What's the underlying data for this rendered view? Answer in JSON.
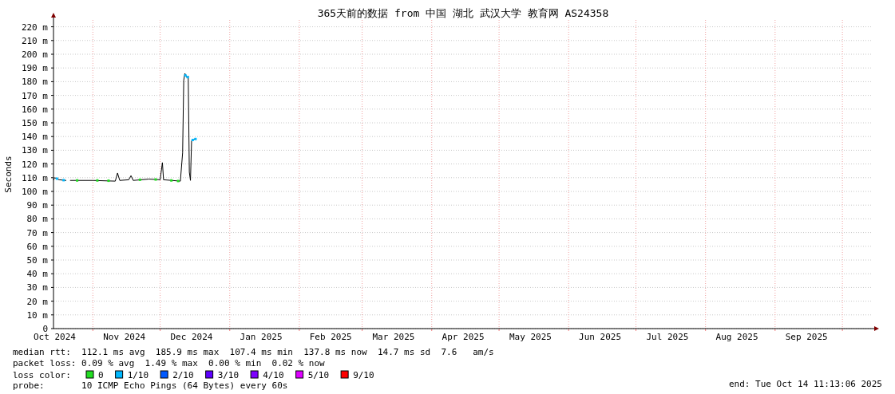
{
  "chart_data": {
    "type": "line",
    "title": "365天前的数据 from 中国 湖北 武汉大学 教育网 AS24358",
    "ylabel": "Seconds",
    "legend_title": "loss color:",
    "legend": "bottom",
    "grid": true,
    "line_style": "solid",
    "marker": "none",
    "xlim": [
      "2024-10-14T11:13",
      "2025-10-14T11:13"
    ],
    "xticks": [
      {
        "value": "2024-10-15",
        "label": "Oct 2024"
      },
      {
        "value": "2024-11-01",
        "label": null
      },
      {
        "value": "2024-11-15",
        "label": "Nov 2024"
      },
      {
        "value": "2024-12-01",
        "label": null
      },
      {
        "value": "2024-12-15",
        "label": "Dec 2024"
      },
      {
        "value": "2025-01-01",
        "label": null
      },
      {
        "value": "2025-01-15",
        "label": "Jan 2025"
      },
      {
        "value": "2025-02-01",
        "label": null
      },
      {
        "value": "2025-02-15",
        "label": "Feb 2025"
      },
      {
        "value": "2025-03-01",
        "label": null
      },
      {
        "value": "2025-03-15",
        "label": "Mar 2025"
      },
      {
        "value": "2025-04-01",
        "label": null
      },
      {
        "value": "2025-04-15",
        "label": "Apr 2025"
      },
      {
        "value": "2025-05-01",
        "label": null
      },
      {
        "value": "2025-05-15",
        "label": "May 2025"
      },
      {
        "value": "2025-06-01",
        "label": null
      },
      {
        "value": "2025-06-15",
        "label": "Jun 2025"
      },
      {
        "value": "2025-07-01",
        "label": null
      },
      {
        "value": "2025-07-15",
        "label": "Jul 2025"
      },
      {
        "value": "2025-08-01",
        "label": null
      },
      {
        "value": "2025-08-15",
        "label": "Aug 2025"
      },
      {
        "value": "2025-09-01",
        "label": null
      },
      {
        "value": "2025-09-15",
        "label": "Sep 2025"
      },
      {
        "value": "2025-10-01",
        "label": null
      }
    ],
    "ylim": [
      0,
      225
    ],
    "yticks": [
      0,
      {
        "value": 10,
        "label": "10 m"
      },
      {
        "value": 20,
        "label": "20 m"
      },
      {
        "value": 30,
        "label": "30 m"
      },
      {
        "value": 40,
        "label": "40 m"
      },
      {
        "value": 50,
        "label": "50 m"
      },
      {
        "value": 60,
        "label": "60 m"
      },
      {
        "value": 70,
        "label": "70 m"
      },
      {
        "value": 80,
        "label": "80 m"
      },
      {
        "value": 90,
        "label": "90 m"
      },
      {
        "value": 100,
        "label": "100 m"
      },
      {
        "value": 110,
        "label": "110 m"
      },
      {
        "value": 120,
        "label": "120 m"
      },
      {
        "value": 130,
        "label": "130 m"
      },
      {
        "value": 140,
        "label": "140 m"
      },
      {
        "value": 150,
        "label": "150 m"
      },
      {
        "value": 160,
        "label": "160 m"
      },
      {
        "value": 170,
        "label": "170 m"
      },
      {
        "value": 180,
        "label": "180 m"
      },
      {
        "value": 190,
        "label": "190 m"
      },
      {
        "value": 200,
        "label": "200 m"
      },
      {
        "value": 210,
        "label": "210 m"
      },
      {
        "value": 220,
        "label": "220 m"
      }
    ],
    "series": [
      {
        "name": "0",
        "type": "scatter",
        "marker": "square",
        "color": "#22dd22",
        "x": [
          "2024-10-25",
          "2024-11-03",
          "2024-11-08",
          "2024-11-22",
          "2024-11-29",
          "2024-12-06",
          "2024-12-09"
        ],
        "values": [
          108,
          108,
          107.8,
          108.5,
          108.7,
          108,
          107.6
        ]
      },
      {
        "name": "1/10",
        "type": "scatter",
        "marker": "square",
        "color": "#00b8ff",
        "x": [
          "2024-10-16",
          "2024-10-19",
          "2024-12-12T06:00",
          "2024-12-13T06:00",
          "2024-12-15T12:00",
          "2024-12-16T18:00"
        ],
        "values": [
          109.3,
          108.2,
          184.5,
          183.3,
          137.5,
          138.2
        ]
      },
      {
        "name": "2/10",
        "color": "#0059ff"
      },
      {
        "name": "3/10",
        "color": "#5e00ff"
      },
      {
        "name": "4/10",
        "color": "#7e00ff"
      },
      {
        "name": "5/10",
        "color": "#dd00ff"
      },
      {
        "name": "9/10",
        "color": "#ff0000"
      },
      {
        "color": "#000000",
        "x": [
          "2024-10-14T12:00",
          "2024-10-15",
          "2024-10-17",
          "2024-10-20",
          "2024-10-21",
          "2024-10-22",
          "2024-11-01",
          "2024-11-11",
          "2024-11-12",
          "2024-11-13",
          "2024-11-17",
          "2024-11-18",
          "2024-11-19",
          "2024-11-26",
          "2024-12-01",
          "2024-12-02",
          "2024-12-02T12:00",
          "2024-12-10",
          "2024-12-11",
          "2024-12-11T12:00",
          "2024-12-12",
          "2024-12-13",
          "2024-12-13T12:00",
          "2024-12-14",
          "2024-12-14T12:00",
          "2024-12-15",
          "2024-12-16",
          "2024-12-17"
        ],
        "values": [
          108.5,
          110,
          108.5,
          108,
          null,
          108,
          108,
          107.5,
          113.4,
          108,
          108.5,
          111.5,
          108,
          109,
          108.5,
          121,
          108.5,
          107.5,
          128,
          181,
          186,
          183,
          184,
          114,
          108,
          137,
          138,
          138.5
        ]
      }
    ],
    "annotations": [
      "median rtt:  112.1 ms avg  185.9 ms max  107.4 ms min  137.8 ms now  14.7 ms sd  7.6   am/s",
      "packet loss: 0.09 % avg  1.49 % max  0.00 % min  0.02 % now",
      "probe:       10 ICMP Echo Pings (64 Bytes) every 60s",
      "end: Tue Oct 14 11:13:06 2025"
    ]
  }
}
